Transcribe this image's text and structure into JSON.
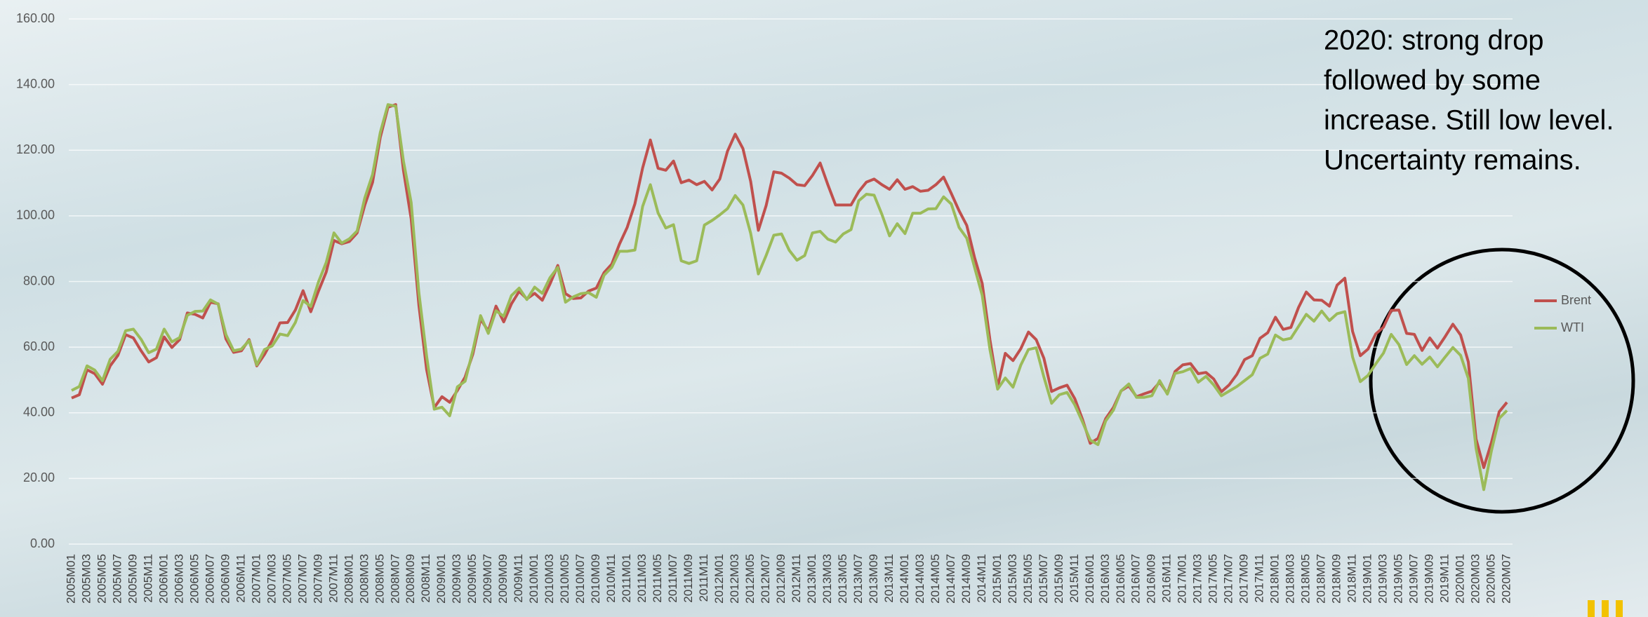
{
  "chart_data": {
    "type": "line",
    "annotation": [
      "2020: strong drop",
      "followed by some",
      "increase. Still low level.",
      "Uncertainty remains."
    ],
    "categories": [
      "2005M01",
      null,
      "2005M03",
      null,
      "2005M05",
      null,
      "2005M07",
      null,
      "2005M09",
      null,
      "2005M11",
      null,
      "2006M01",
      null,
      "2006M03",
      null,
      "2006M05",
      null,
      "2006M07",
      null,
      "2006M09",
      null,
      "2006M11",
      null,
      "2007M01",
      null,
      "2007M03",
      null,
      "2007M05",
      null,
      "2007M07",
      null,
      "2007M09",
      null,
      "2007M11",
      null,
      "2008M01",
      null,
      "2008M03",
      null,
      "2008M05",
      null,
      "2008M07",
      null,
      "2008M09",
      null,
      "2008M11",
      null,
      "2009M01",
      null,
      "2009M03",
      null,
      "2009M05",
      null,
      "2009M07",
      null,
      "2009M09",
      null,
      "2009M11",
      null,
      "2010M01",
      null,
      "2010M03",
      null,
      "2010M05",
      null,
      "2010M07",
      null,
      "2010M09",
      null,
      "2010M11",
      null,
      "2011M01",
      null,
      "2011M03",
      null,
      "2011M05",
      null,
      "2011M07",
      null,
      "2011M09",
      null,
      "2011M11",
      null,
      "2012M01",
      null,
      "2012M03",
      null,
      "2012M05",
      null,
      "2012M07",
      null,
      "2012M09",
      null,
      "2012M11",
      null,
      "2013M01",
      null,
      "2013M03",
      null,
      "2013M05",
      null,
      "2013M07",
      null,
      "2013M09",
      null,
      "2013M11",
      null,
      "2014M01",
      null,
      "2014M03",
      null,
      "2014M05",
      null,
      "2014M07",
      null,
      "2014M09",
      null,
      "2014M11",
      null,
      "2015M01",
      null,
      "2015M03",
      null,
      "2015M05",
      null,
      "2015M07",
      null,
      "2015M09",
      null,
      "2015M11",
      null,
      "2016M01",
      null,
      "2016M03",
      null,
      "2016M05",
      null,
      "2016M07",
      null,
      "2016M09",
      null,
      "2016M11",
      null,
      "2017M01",
      null,
      "2017M03",
      null,
      "2017M05",
      null,
      "2017M07",
      null,
      "2017M09",
      null,
      "2017M11",
      null,
      "2018M01",
      null,
      "2018M03",
      null,
      "2018M05",
      null,
      "2018M07",
      null,
      "2018M09",
      null,
      "2018M11",
      null,
      "2019M01",
      null,
      "2019M03",
      null,
      "2019M05",
      null,
      "2019M07",
      null,
      "2019M09",
      null,
      "2019M11",
      null,
      "2020M01",
      null,
      "2020M03",
      null,
      "2020M05",
      null,
      "2020M07"
    ],
    "series": [
      {
        "name": "Brent",
        "color": "#c0504d",
        "values": [
          44.5,
          45.5,
          53.1,
          51.9,
          48.7,
          54.3,
          57.5,
          63.8,
          62.8,
          58.9,
          55.5,
          56.8,
          63.1,
          59.9,
          62.3,
          70.4,
          70.0,
          68.9,
          73.7,
          73.2,
          62.5,
          58.4,
          58.9,
          62.3,
          54.3,
          57.8,
          62.1,
          67.4,
          67.5,
          71.3,
          77.2,
          70.8,
          77.1,
          82.9,
          92.5,
          91.5,
          92.2,
          94.8,
          103.3,
          110.2,
          123.9,
          133.1,
          133.9,
          113.9,
          99.1,
          72.8,
          53.2,
          41.6,
          44.9,
          43.2,
          46.8,
          50.9,
          57.9,
          68.6,
          64.9,
          72.5,
          67.7,
          73.2,
          77.0,
          74.7,
          76.4,
          74.3,
          79.3,
          84.9,
          76.3,
          74.8,
          75.0,
          77.1,
          78.0,
          82.7,
          85.3,
          91.4,
          96.5,
          103.7,
          114.6,
          123.1,
          114.5,
          113.9,
          116.7,
          110.1,
          110.9,
          109.5,
          110.5,
          107.9,
          111.2,
          119.7,
          124.9,
          120.5,
          110.5,
          95.6,
          103.1,
          113.4,
          113.0,
          111.5,
          109.5,
          109.2,
          112.3,
          116.1,
          109.5,
          103.3,
          103.3,
          103.3,
          107.4,
          110.3,
          111.2,
          109.5,
          108.1,
          111.0,
          108.1,
          108.9,
          107.5,
          107.8,
          109.5,
          111.8,
          106.8,
          101.6,
          97.1,
          87.4,
          79.4,
          62.3,
          47.8,
          58.1,
          55.9,
          59.5,
          64.6,
          62.3,
          56.6,
          46.5,
          47.6,
          48.4,
          44.3,
          38.0,
          30.7,
          32.2,
          38.2,
          41.6,
          46.7,
          48.2,
          44.9,
          45.8,
          46.6,
          49.3,
          45.9,
          52.6,
          54.6,
          55.0,
          51.9,
          52.3,
          50.3,
          46.4,
          48.5,
          51.7,
          56.2,
          57.4,
          62.7,
          64.4,
          69.1,
          65.4,
          66.0,
          72.1,
          76.8,
          74.4,
          74.3,
          72.5,
          78.9,
          81.0,
          64.8,
          57.4,
          59.4,
          64.0,
          66.1,
          71.2,
          71.3,
          64.2,
          63.9,
          59.0,
          62.8,
          59.7,
          63.2,
          67.0,
          63.7,
          55.5,
          32.0,
          23.3,
          31.0,
          40.3,
          43.2
        ]
      },
      {
        "name": "WTI",
        "color": "#9bbb59",
        "values": [
          46.8,
          48.0,
          54.3,
          53.0,
          49.8,
          56.3,
          58.7,
          65.0,
          65.5,
          62.4,
          58.3,
          59.4,
          65.5,
          61.6,
          62.9,
          69.7,
          70.9,
          71.0,
          74.4,
          73.1,
          63.8,
          58.9,
          59.4,
          62.0,
          54.6,
          59.3,
          60.4,
          64.0,
          63.5,
          67.5,
          74.2,
          72.4,
          79.9,
          85.8,
          94.8,
          91.7,
          93.0,
          95.4,
          105.5,
          112.6,
          125.4,
          133.9,
          133.4,
          116.7,
          104.1,
          76.6,
          57.3,
          41.1,
          41.7,
          39.1,
          47.9,
          49.6,
          59.0,
          69.6,
          64.2,
          71.1,
          69.4,
          75.7,
          78.0,
          74.5,
          78.3,
          76.4,
          81.2,
          84.3,
          73.7,
          75.3,
          76.3,
          76.6,
          75.2,
          81.9,
          84.3,
          89.2,
          89.2,
          89.6,
          102.9,
          109.5,
          100.9,
          96.3,
          97.3,
          86.3,
          85.5,
          86.3,
          97.2,
          98.6,
          100.3,
          102.2,
          106.2,
          103.3,
          94.7,
          82.3,
          87.9,
          94.1,
          94.5,
          89.5,
          86.5,
          87.9,
          94.8,
          95.3,
          92.9,
          92.0,
          94.5,
          95.8,
          104.6,
          106.6,
          106.3,
          100.5,
          93.9,
          97.6,
          94.6,
          100.8,
          100.8,
          102.1,
          102.2,
          105.8,
          103.6,
          96.5,
          93.2,
          84.4,
          75.8,
          59.3,
          47.2,
          50.6,
          47.8,
          54.5,
          59.3,
          59.8,
          50.9,
          42.9,
          45.5,
          46.2,
          42.4,
          37.2,
          31.7,
          30.3,
          37.5,
          40.8,
          46.7,
          48.8,
          44.7,
          44.7,
          45.2,
          49.8,
          45.7,
          52.0,
          52.5,
          53.5,
          49.3,
          51.1,
          48.5,
          45.2,
          46.6,
          48.0,
          49.8,
          51.6,
          56.6,
          57.9,
          63.7,
          62.2,
          62.7,
          66.3,
          70.0,
          67.9,
          71.0,
          68.1,
          70.2,
          70.8,
          57.0,
          49.5,
          51.4,
          54.9,
          58.2,
          63.9,
          60.8,
          54.7,
          57.4,
          54.8,
          57.0,
          54.0,
          57.0,
          59.9,
          57.5,
          50.5,
          29.2,
          16.6,
          28.5,
          38.3,
          40.7
        ]
      }
    ],
    "ylim": [
      0,
      160
    ],
    "yticks": [
      {
        "value": 0,
        "label": "0.00"
      },
      {
        "value": 20,
        "label": "20.00"
      },
      {
        "value": 40,
        "label": "40.00"
      },
      {
        "value": 60,
        "label": "60.00"
      },
      {
        "value": 80,
        "label": "80.00"
      },
      {
        "value": 100,
        "label": "100.00"
      },
      {
        "value": 120,
        "label": "120.00"
      },
      {
        "value": 140,
        "label": "140.00"
      },
      {
        "value": 160,
        "label": "160.00"
      }
    ],
    "grid": true,
    "legend": "right"
  }
}
